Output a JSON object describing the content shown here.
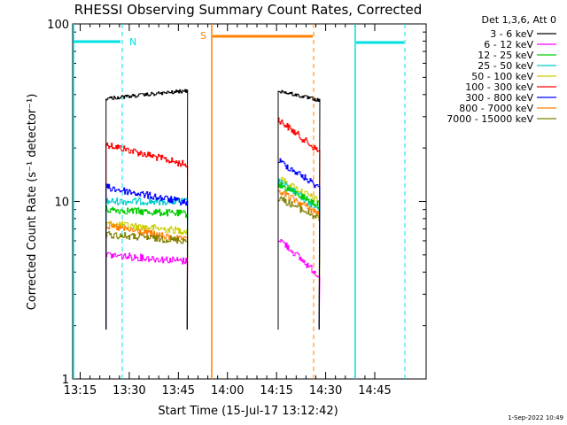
{
  "chart_data": {
    "type": "line",
    "title": "RHESSI Observing Summary Count Rates, Corrected",
    "xlabel": "Start Time (15-Jul-17 13:12:42)",
    "ylabel": "Corrected Count Rate (s⁻¹ detector⁻¹)",
    "yscale": "log",
    "ylim": [
      1,
      100
    ],
    "xlim_minutes_from_13_12_42": [
      0,
      108
    ],
    "x_ticks": [
      {
        "label": "13:15",
        "minute": 2.3
      },
      {
        "label": "13:30",
        "minute": 17.3
      },
      {
        "label": "13:45",
        "minute": 32.3
      },
      {
        "label": "14:00",
        "minute": 47.3
      },
      {
        "label": "14:15",
        "minute": 62.3
      },
      {
        "label": "14:30",
        "minute": 77.3
      },
      {
        "label": "14:45",
        "minute": 92.3
      }
    ],
    "y_ticks": [
      {
        "label": "1",
        "value": 1
      },
      {
        "label": "10",
        "value": 10
      },
      {
        "label": "100",
        "value": 100
      }
    ],
    "legend_title": "Det 1,3,6, Att 0",
    "legend_position": "right",
    "series": [
      {
        "name": "3 - 6 keV",
        "color": "#000000",
        "seg1": [
          38,
          42
        ],
        "seg2": [
          42,
          37
        ]
      },
      {
        "name": "6 - 12 keV",
        "color": "#ff00ff",
        "seg1": [
          5,
          4.6
        ],
        "seg2": [
          6.2,
          3.8
        ]
      },
      {
        "name": "12 - 25 keV",
        "color": "#00cc00",
        "seg1": [
          9,
          8.5
        ],
        "seg2": [
          12.5,
          9.5
        ]
      },
      {
        "name": "25 - 50 keV",
        "color": "#00cccc",
        "seg1": [
          10,
          10
        ],
        "seg2": [
          13,
          9
        ]
      },
      {
        "name": "50 - 100 keV",
        "color": "#cccc00",
        "seg1": [
          7.5,
          6.8
        ],
        "seg2": [
          13.5,
          10
        ]
      },
      {
        "name": "100 - 300 keV",
        "color": "#ff0000",
        "seg1": [
          21,
          16
        ],
        "seg2": [
          29,
          19
        ]
      },
      {
        "name": "300 - 800 keV",
        "color": "#0000ff",
        "seg1": [
          12,
          9.8
        ],
        "seg2": [
          17,
          12
        ]
      },
      {
        "name": "800 - 7000 keV",
        "color": "#ff8000",
        "seg1": [
          7.3,
          6
        ],
        "seg2": [
          11.5,
          8.5
        ]
      },
      {
        "name": "7000 - 15000 keV",
        "color": "#808000",
        "seg1": [
          6.5,
          6
        ],
        "seg2": [
          10.5,
          8
        ]
      }
    ],
    "annotations": [
      {
        "label": "N",
        "color": "#00e0e0"
      },
      {
        "label": "S",
        "color": "#ff8000"
      }
    ],
    "grid": false
  },
  "footer": {
    "timestamp": "1-Sep-2022 10:49"
  },
  "colors": {
    "night": "#00e0e0",
    "saa": "#ff8000",
    "axis": "#000000"
  }
}
